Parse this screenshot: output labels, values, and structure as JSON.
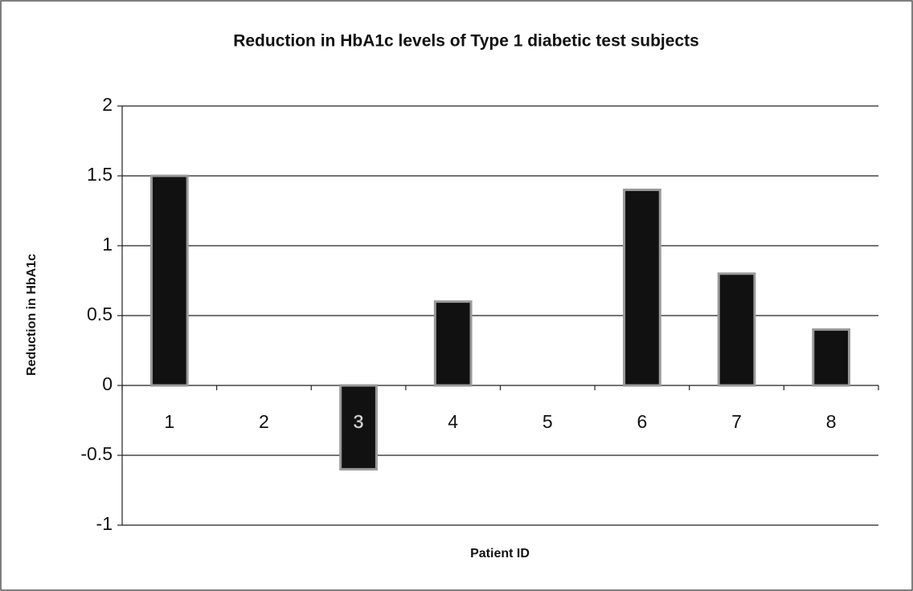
{
  "chart_data": {
    "type": "bar",
    "title": "Reduction in HbA1c levels of Type 1 diabetic test subjects",
    "x_label": "Patient ID",
    "y_label": "Reduction in HbA1c",
    "categories": [
      "1",
      "2",
      "3",
      "4",
      "5",
      "6",
      "7",
      "8"
    ],
    "values": [
      1.5,
      0,
      -0.6,
      0.6,
      0,
      1.4,
      0.8,
      0.4
    ],
    "color": "#111111",
    "ylim": [
      -1,
      2
    ],
    "yticks": [
      -1,
      -0.5,
      0,
      0.5,
      1,
      1.5,
      2
    ],
    "grid": true
  }
}
